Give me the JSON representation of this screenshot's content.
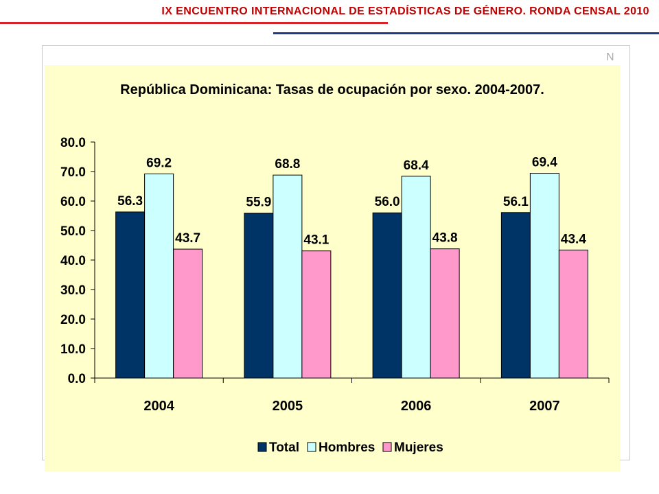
{
  "header": {
    "title": "IX ENCUENTRO INTERNACIONAL DE ESTADÍSTICAS DE GÉNERO. RONDA CENSAL 2010",
    "title_color": "#c00000",
    "rule_red_color": "#d9232a",
    "rule_blue_color": "#1f3a8a"
  },
  "frame": {
    "corner_letter": "N"
  },
  "chart_data": {
    "type": "bar",
    "title": "República Dominicana: Tasas de ocupación por sexo. 2004-2007.",
    "categories": [
      "2004",
      "2005",
      "2006",
      "2007"
    ],
    "series": [
      {
        "name": "Total",
        "values": [
          56.3,
          55.9,
          56.0,
          56.1
        ],
        "color": "#003366"
      },
      {
        "name": "Hombres",
        "values": [
          69.2,
          68.8,
          68.4,
          69.4
        ],
        "color": "#ccffff"
      },
      {
        "name": "Mujeres",
        "values": [
          43.7,
          43.1,
          43.8,
          43.4
        ],
        "color": "#ff99cc"
      }
    ],
    "value_labels": [
      [
        "56.3",
        "55.9",
        "56.0",
        "56.1"
      ],
      [
        "69.2",
        "68.8",
        "68.4",
        "69.4"
      ],
      [
        "43.7",
        "43.1",
        "43.8",
        "43.4"
      ]
    ],
    "ylim": [
      0,
      80
    ],
    "yticks": [
      "0.0",
      "10.0",
      "20.0",
      "30.0",
      "40.0",
      "50.0",
      "60.0",
      "70.0",
      "80.0"
    ],
    "xlabel": "",
    "ylabel": "",
    "grid": false,
    "legend_position": "bottom",
    "background_color": "#ffffcc"
  }
}
